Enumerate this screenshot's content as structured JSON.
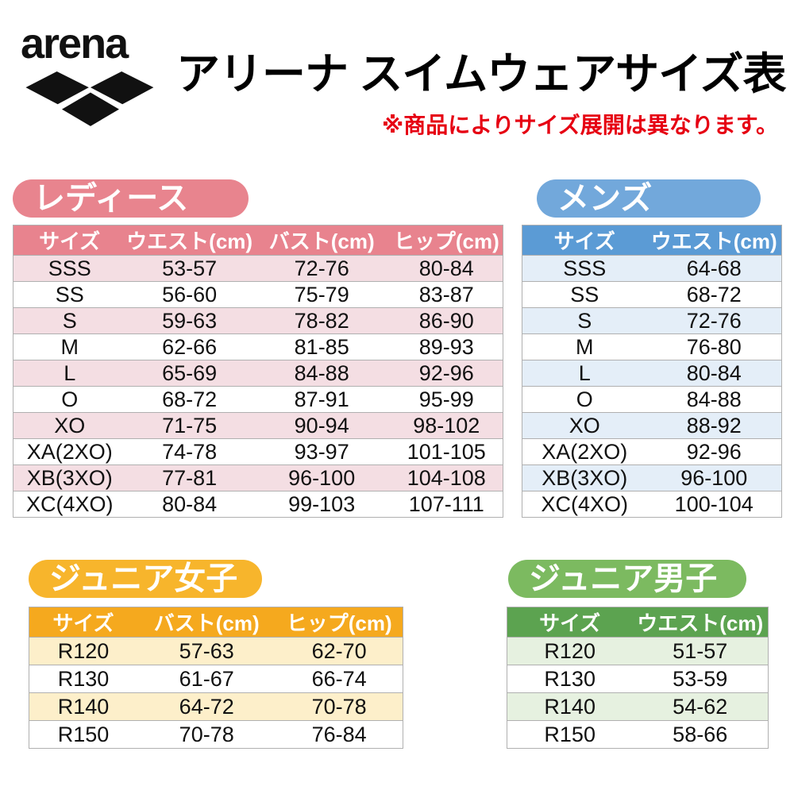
{
  "header": {
    "logo_text": "arena",
    "logo_mark": "arena-three-diamonds",
    "title": "アリーナ スイムウェアサイズ表",
    "note": "※商品によりサイズ展開は異なります。",
    "note_color": "#e60012"
  },
  "tables": {
    "ladies": {
      "badge": "レディース",
      "columns": [
        "サイズ",
        "ウエスト(cm)",
        "バスト(cm)",
        "ヒップ(cm)"
      ],
      "rows": [
        [
          "SSS",
          "53-57",
          "72-76",
          "80-84"
        ],
        [
          "SS",
          "56-60",
          "75-79",
          "83-87"
        ],
        [
          "S",
          "59-63",
          "78-82",
          "86-90"
        ],
        [
          "M",
          "62-66",
          "81-85",
          "89-93"
        ],
        [
          "L",
          "65-69",
          "84-88",
          "92-96"
        ],
        [
          "O",
          "68-72",
          "87-91",
          "95-99"
        ],
        [
          "XO",
          "71-75",
          "90-94",
          "98-102"
        ],
        [
          "XA(2XO)",
          "74-78",
          "93-97",
          "101-105"
        ],
        [
          "XB(3XO)",
          "77-81",
          "96-100",
          "104-108"
        ],
        [
          "XC(4XO)",
          "80-84",
          "99-103",
          "107-111"
        ]
      ],
      "colors": {
        "badge": "#e8848e",
        "header": "#e8838e",
        "stripe": "#f4dee3"
      }
    },
    "mens": {
      "badge": "メンズ",
      "columns": [
        "サイズ",
        "ウエスト(cm)"
      ],
      "rows": [
        [
          "SSS",
          "64-68"
        ],
        [
          "SS",
          "68-72"
        ],
        [
          "S",
          "72-76"
        ],
        [
          "M",
          "76-80"
        ],
        [
          "L",
          "80-84"
        ],
        [
          "O",
          "84-88"
        ],
        [
          "XO",
          "88-92"
        ],
        [
          "XA(2XO)",
          "92-96"
        ],
        [
          "XB(3XO)",
          "96-100"
        ],
        [
          "XC(4XO)",
          "100-104"
        ]
      ],
      "colors": {
        "badge": "#72a8db",
        "header": "#5b9bd5",
        "stripe": "#e4eef8"
      }
    },
    "junior_girls": {
      "badge": "ジュニア女子",
      "columns": [
        "サイズ",
        "バスト(cm)",
        "ヒップ(cm)"
      ],
      "rows": [
        [
          "R120",
          "57-63",
          "62-70"
        ],
        [
          "R130",
          "61-67",
          "66-74"
        ],
        [
          "R140",
          "64-72",
          "70-78"
        ],
        [
          "R150",
          "70-78",
          "76-84"
        ]
      ],
      "colors": {
        "badge": "#f7b52c",
        "header": "#f5a91e",
        "stripe": "#fdefca"
      }
    },
    "junior_boys": {
      "badge": "ジュニア男子",
      "columns": [
        "サイズ",
        "ウエスト(cm)"
      ],
      "rows": [
        [
          "R120",
          "51-57"
        ],
        [
          "R130",
          "53-59"
        ],
        [
          "R140",
          "54-62"
        ],
        [
          "R150",
          "58-66"
        ]
      ],
      "colors": {
        "badge": "#7cba60",
        "header": "#5ca350",
        "stripe": "#e6f1e0"
      }
    }
  }
}
